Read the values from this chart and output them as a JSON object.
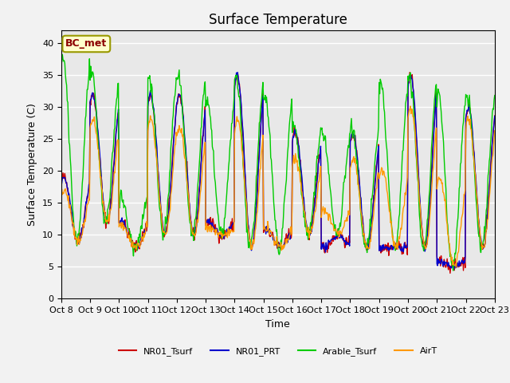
{
  "title": "Surface Temperature",
  "ylabel": "Surface Temperature (C)",
  "xlabel": "Time",
  "annotation": "BC_met",
  "ylim": [
    0,
    42
  ],
  "yticks": [
    0,
    5,
    10,
    15,
    20,
    25,
    30,
    35,
    40
  ],
  "legend": [
    "NR01_Tsurf",
    "NR01_PRT",
    "Arable_Tsurf",
    "AirT"
  ],
  "colors": [
    "#cc0000",
    "#0000cc",
    "#00cc00",
    "#ff9900"
  ],
  "background_color": "#e8e8e8",
  "fig_background": "#f2f2f2",
  "grid_color": "#ffffff",
  "title_fontsize": 12,
  "axis_fontsize": 9,
  "tick_fontsize": 8,
  "figsize": [
    6.4,
    4.8
  ],
  "dpi": 100
}
